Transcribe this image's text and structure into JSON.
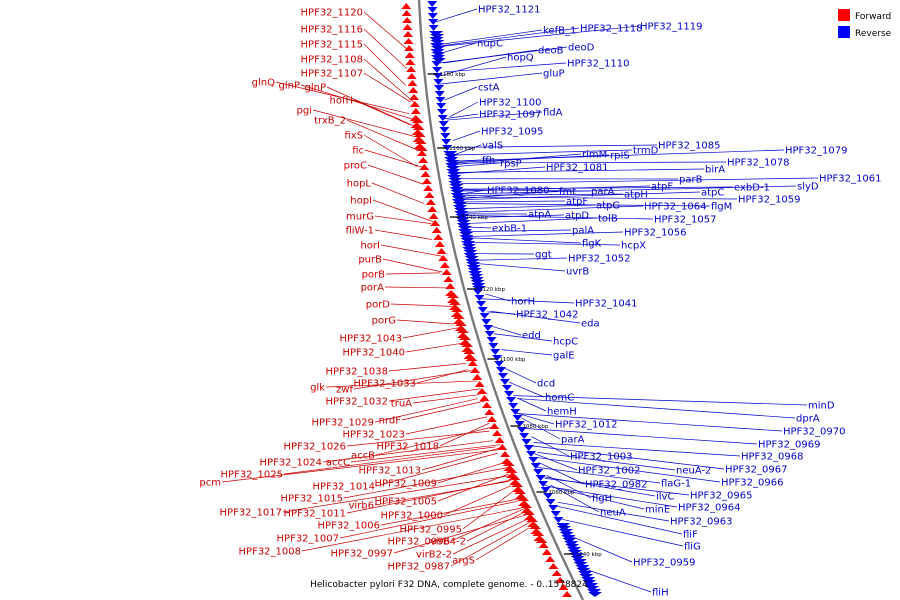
{
  "caption": "Helicobacter pylori F32 DNA, complete genome. - 0..1578824",
  "legend": [
    {
      "label": "Forward",
      "color": "#ff0000"
    },
    {
      "label": "Reverse",
      "color": "#0000ff"
    }
  ],
  "colors": {
    "forward_label": "#cc0000",
    "reverse_label": "#0000cc",
    "forward_arrow": "#ff0000",
    "reverse_arrow": "#0000ff",
    "backbone": "#7a7a7a"
  },
  "ticks": [
    "1180 kbp",
    "1160 kbp",
    "1140 kbp",
    "1120 kbp",
    "1100 kbp",
    "1080 kbp",
    "1060 kbp",
    "1040 kbp"
  ],
  "forward_genes": [
    "HPF32_1120",
    "HPF32_1116",
    "HPF32_1115",
    "HPF32_1108",
    "HPF32_1107",
    "glnQ",
    "glnP",
    "glnP",
    "hofH",
    "pgi",
    "trxB_2",
    "fixS",
    "fic",
    "proC",
    "hopL",
    "hopI",
    "murG",
    "fliW-1",
    "horI",
    "purB",
    "porB",
    "porA",
    "porD",
    "porG",
    "HPF32_1043",
    "HPF32_1040",
    "HPF32_1038",
    "glk",
    "zwf",
    "HPF32_1033",
    "HPF32_1032",
    "truA",
    "HPF32_1029",
    "nrdF",
    "HPF32_1023",
    "HPF32_1026",
    "accB",
    "HPF32_1018",
    "HPF32_1024",
    "accC",
    "pcm",
    "HPF32_1025",
    "HPF32_1013",
    "HPF32_1009",
    "HPF32_1014",
    "HPF32_1015",
    "HPF32_1005",
    "virb6",
    "HPF32_1017",
    "HPF32_1011",
    "HPF32_1000",
    "HPF32_1006",
    "HPF32_0995",
    "HPF32_1007",
    "HPF32_0996",
    "virB4-2",
    "HPF32_1008",
    "HPF32_0997",
    "virB2-2",
    "argS",
    "HPF32_0987"
  ],
  "reverse_genes": [
    "HPF32_1121",
    "kefB_1",
    "HPF32_1118",
    "HPF32_1119",
    "nupC",
    "deoB",
    "deoD",
    "hopQ",
    "HPF32_1110",
    "gluP",
    "cstA",
    "HPF32_1100",
    "HPF32_1097",
    "fldA",
    "HPF32_1095",
    "valS",
    "HPF32_1085",
    "trmD",
    "rpIS",
    "rimM",
    "ffh",
    "rpsP",
    "HPF32_1081",
    "HPF32_1079",
    "HPF32_1078",
    "birA",
    "HPF32_1061",
    "slyD",
    "parB",
    "exbD-1",
    "HPF32_1080",
    "fmt",
    "parA",
    "atpH",
    "atpF",
    "atpC",
    "HPF32_1059",
    "atpF",
    "atpG",
    "HPF32_1064",
    "flgM",
    "atpA",
    "atpD",
    "tolB",
    "HPF32_1057",
    "exbB-1",
    "palA",
    "HPF32_1056",
    "flgK",
    "hcpX",
    "ggt",
    "HPF32_1052",
    "uvrB",
    "horH",
    "HPF32_1041",
    "HPF32_1042",
    "eda",
    "edd",
    "hcpC",
    "galE",
    "dcd",
    "homC",
    "hemH",
    "HPF32_1012",
    "parA",
    "HPF32_1003",
    "HPF32_1002",
    "minD",
    "dprA",
    "HPF32_0970",
    "HPF32_0969",
    "HPF32_0968",
    "HPF32_0967",
    "HPF32_0982",
    "neuA-2",
    "flaG-1",
    "HPF32_0966",
    "flgH",
    "ilvC",
    "HPF32_0965",
    "neuA",
    "minE",
    "HPF32_0964",
    "HPF32_0963",
    "fliF",
    "fliG",
    "HPF32_0959",
    "fliH"
  ]
}
